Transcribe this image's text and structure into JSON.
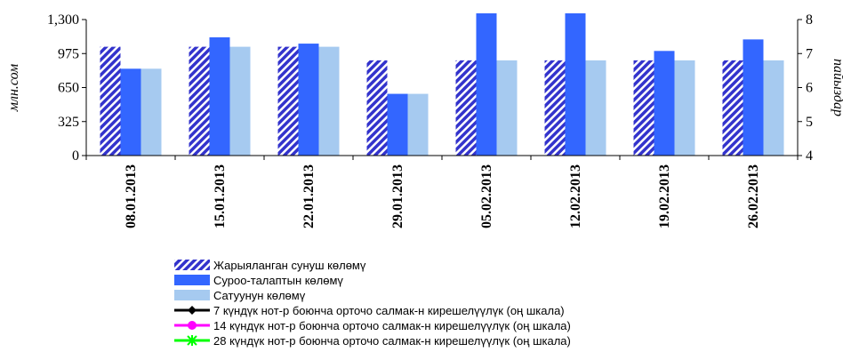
{
  "chart_data": {
    "type": "bar",
    "categories": [
      "08.01.2013",
      "15.01.2013",
      "22.01.2013",
      "29.01.2013",
      "05.02.2013",
      "12.02.2013",
      "19.02.2013",
      "26.02.2013"
    ],
    "series": [
      {
        "name": "Жарыяланган сунуш көлөмү",
        "axis": "left",
        "pattern": "diagonal-stripes",
        "color": "#3333cc",
        "values": [
          1040,
          1040,
          1040,
          910,
          910,
          910,
          910,
          910
        ]
      },
      {
        "name": "Суроо-талаптын көлөмү",
        "axis": "left",
        "color": "#3366ff",
        "values": [
          830,
          1130,
          1070,
          590,
          1360,
          1360,
          1000,
          1110
        ]
      },
      {
        "name": "Сатуунун көлөмү",
        "axis": "left",
        "color": "#a6caf0",
        "values": [
          830,
          1040,
          1040,
          590,
          910,
          910,
          910,
          910
        ]
      }
    ],
    "line_series": [
      {
        "name": "7 күндүк нот-р боюнча орточо салмак-н кирешелүүлүк (оң шкала)",
        "axis": "right",
        "color": "#000000",
        "marker": "diamond",
        "values": []
      },
      {
        "name": "14 күндүк нот-р боюнча орточо салмак-н кирешелүүлүк (оң шкала)",
        "axis": "right",
        "color": "#ff00ff",
        "marker": "circle",
        "values": []
      },
      {
        "name": "28 күндүк нот-р боюнча орточо салмак-н кирешелүүлүк (оң шкала)",
        "axis": "right",
        "color": "#00ff00",
        "marker": "asterisk",
        "values": []
      }
    ],
    "y_left": {
      "label": "млн.сом",
      "min": 0,
      "max": 1300,
      "ticks": [
        "0",
        "325",
        "650",
        "975",
        "1,300"
      ]
    },
    "y_right": {
      "label": "пайыздар",
      "min": 4,
      "max": 8,
      "ticks": [
        "4",
        "5",
        "6",
        "7",
        "8"
      ]
    },
    "grid": false,
    "legend_position": "bottom"
  }
}
